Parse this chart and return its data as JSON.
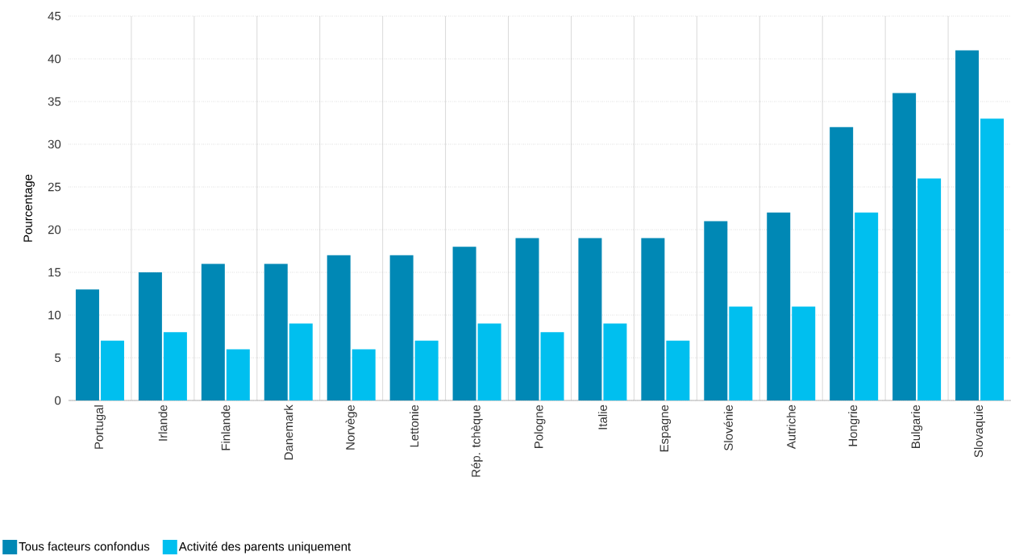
{
  "chart_data": {
    "type": "bar",
    "ylabel": "Pourcentage",
    "categories": [
      "Portugal",
      "Irlande",
      "Finlande",
      "Danemark",
      "Norvège",
      "Lettonie",
      "Rép. tchèque",
      "Pologne",
      "Italie",
      "Espagne",
      "Slovénie",
      "Autriche",
      "Hongrie",
      "Bulgarie",
      "Slovaquie"
    ],
    "series": [
      {
        "name": "Tous facteurs confondus",
        "color": "#0088b5",
        "values": [
          13,
          15,
          16,
          16,
          17,
          17,
          18,
          19,
          19,
          19,
          21,
          22,
          32,
          36,
          41
        ]
      },
      {
        "name": "Activité des parents uniquement",
        "color": "#00bfef",
        "values": [
          7,
          8,
          6,
          9,
          6,
          7,
          9,
          8,
          9,
          7,
          11,
          11,
          22,
          26,
          33
        ]
      }
    ],
    "ylim": [
      0,
      45
    ],
    "yticks": [
      0,
      5,
      10,
      15,
      20,
      25,
      30,
      35,
      40,
      45
    ],
    "grid": true,
    "legend": "bottom left"
  }
}
